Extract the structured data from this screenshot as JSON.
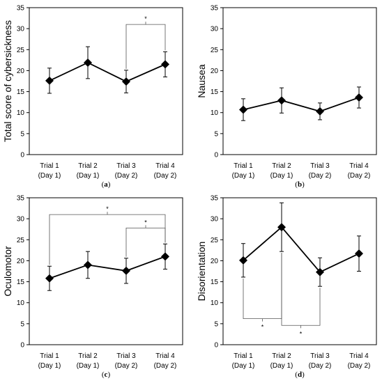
{
  "chart_data": [
    {
      "id": "a",
      "type": "line",
      "panel_label": "a",
      "ylabel": "Total score of cybersickness",
      "categories": [
        [
          "Trial 1",
          "(Day 1)"
        ],
        [
          "Trial 2",
          "(Day 1)"
        ],
        [
          "Trial 3",
          "(Day 2)"
        ],
        [
          "Trial 4",
          "(Day 2)"
        ]
      ],
      "ylim": [
        0,
        35
      ],
      "yticks": [
        0,
        5,
        10,
        15,
        20,
        25,
        30,
        35
      ],
      "series": [
        {
          "values": [
            17.6,
            21.9,
            17.4,
            21.5
          ],
          "error": [
            3.0,
            3.8,
            2.7,
            3.0
          ]
        }
      ],
      "significance": [
        {
          "from": 2,
          "to": 3,
          "y": 31.0,
          "label": "*",
          "side": "above"
        }
      ],
      "marker": "diamond",
      "grid": false
    },
    {
      "id": "b",
      "type": "line",
      "panel_label": "b",
      "ylabel": "Nausea",
      "categories": [
        [
          "Trial 1",
          "(Day 1)"
        ],
        [
          "Trial 2",
          "(Day 1)"
        ],
        [
          "Trial 3",
          "(Day 2)"
        ],
        [
          "Trial 4",
          "(Day 2)"
        ]
      ],
      "ylim": [
        0,
        35
      ],
      "yticks": [
        0,
        5,
        10,
        15,
        20,
        25,
        30,
        35
      ],
      "series": [
        {
          "values": [
            10.7,
            12.9,
            10.3,
            13.6
          ],
          "error": [
            2.6,
            3.0,
            2.0,
            2.5
          ]
        }
      ],
      "significance": [],
      "marker": "diamond",
      "grid": false
    },
    {
      "id": "c",
      "type": "line",
      "panel_label": "c",
      "ylabel": "Oculomotor",
      "categories": [
        [
          "Trial 1",
          "(Day 1)"
        ],
        [
          "Trial 2",
          "(Day 1)"
        ],
        [
          "Trial 3",
          "(Day 2)"
        ],
        [
          "Trial 4",
          "(Day 2)"
        ]
      ],
      "ylim": [
        0,
        35
      ],
      "yticks": [
        0,
        5,
        10,
        15,
        20,
        25,
        30,
        35
      ],
      "series": [
        {
          "values": [
            15.8,
            19.0,
            17.6,
            21.0
          ],
          "error": [
            2.9,
            3.2,
            3.0,
            3.0
          ]
        }
      ],
      "significance": [
        {
          "from": 0,
          "to": 3,
          "y": 31.0,
          "label": "*",
          "side": "above"
        },
        {
          "from": 2,
          "to": 3,
          "y": 27.8,
          "label": "*",
          "side": "above"
        }
      ],
      "marker": "diamond",
      "grid": false
    },
    {
      "id": "d",
      "type": "line",
      "panel_label": "d",
      "ylabel": "Disorientation",
      "categories": [
        [
          "Trial 1",
          "(Day 1)"
        ],
        [
          "Trial 2",
          "(Day 1)"
        ],
        [
          "Trial 3",
          "(Day 2)"
        ],
        [
          "Trial 4",
          "(Day 2)"
        ]
      ],
      "ylim": [
        0,
        35
      ],
      "yticks": [
        0,
        5,
        10,
        15,
        20,
        25,
        30,
        35
      ],
      "series": [
        {
          "values": [
            20.1,
            28.0,
            17.3,
            21.7
          ],
          "error": [
            4.0,
            5.8,
            3.4,
            4.2
          ]
        }
      ],
      "significance": [
        {
          "from": 0,
          "to": 1,
          "y": 6.2,
          "label": "*",
          "side": "below"
        },
        {
          "from": 1,
          "to": 2,
          "y": 4.6,
          "label": "*",
          "side": "below"
        }
      ],
      "marker": "diamond",
      "grid": false
    }
  ]
}
